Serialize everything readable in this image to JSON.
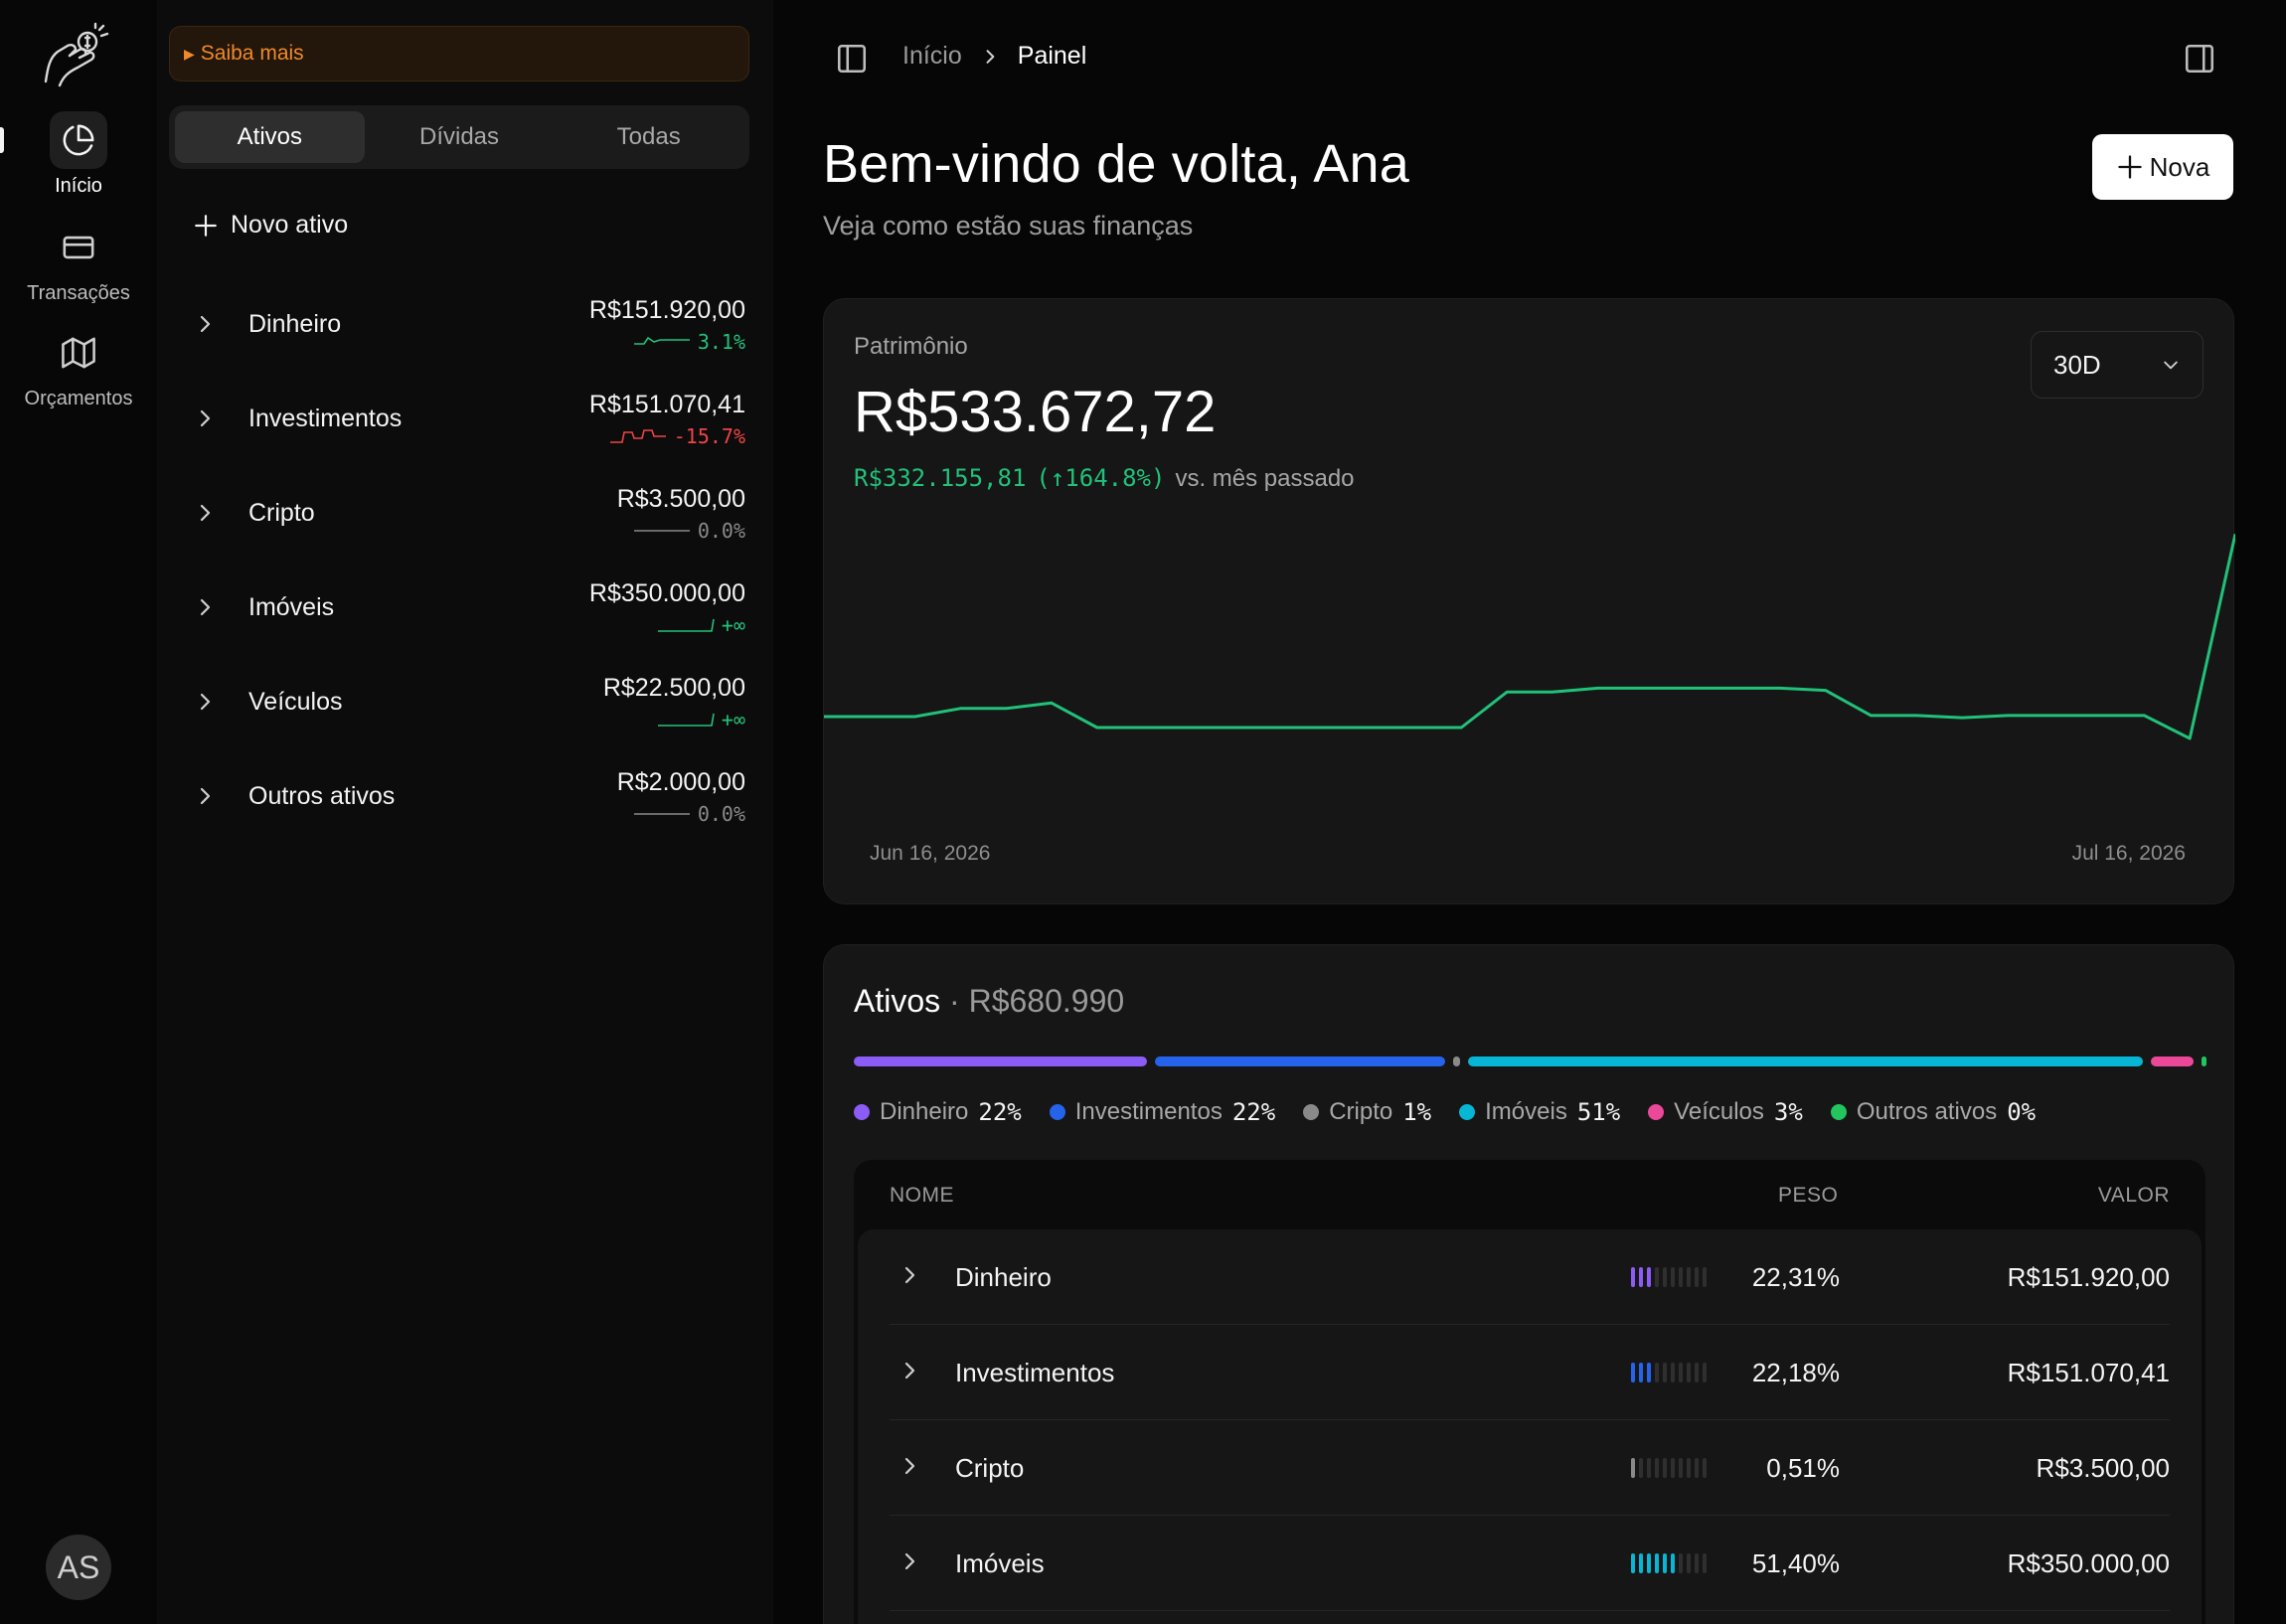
{
  "nav": {
    "items": [
      {
        "label": "Início",
        "icon": "pie-chart-icon",
        "active": true
      },
      {
        "label": "Transações",
        "icon": "credit-card-icon",
        "active": false
      },
      {
        "label": "Orçamentos",
        "icon": "map-icon",
        "active": false
      }
    ],
    "avatar_initials": "AS"
  },
  "panel": {
    "promo": "Saiba mais",
    "tabs": [
      "Ativos",
      "Dívidas",
      "Todas"
    ],
    "active_tab": "Ativos",
    "new_asset": "Novo ativo",
    "accounts": [
      {
        "name": "Dinheiro",
        "amount": "R$151.920,00",
        "trend": "3.1%",
        "dir": "up"
      },
      {
        "name": "Investimentos",
        "amount": "R$151.070,41",
        "trend": "-15.7%",
        "dir": "down"
      },
      {
        "name": "Cripto",
        "amount": "R$3.500,00",
        "trend": "0.0%",
        "dir": "flat"
      },
      {
        "name": "Imóveis",
        "amount": "R$350.000,00",
        "trend": "+∞",
        "dir": "up"
      },
      {
        "name": "Veículos",
        "amount": "R$22.500,00",
        "trend": "+∞",
        "dir": "up"
      },
      {
        "name": "Outros ativos",
        "amount": "R$2.000,00",
        "trend": "0.0%",
        "dir": "flat"
      }
    ]
  },
  "header": {
    "breadcrumb": [
      "Início",
      "Painel"
    ],
    "welcome": "Bem-vindo de volta, Ana",
    "subtitle": "Veja como estão suas finanças",
    "new_button": "Nova"
  },
  "networth": {
    "label": "Patrimônio",
    "value": "R$533.672,72",
    "delta_value": "R$332.155,81",
    "delta_pct": "(↑164.8%)",
    "delta_suffix": "vs. mês passado",
    "range": "30D",
    "colors": {
      "line": "#21c17a"
    }
  },
  "chart_data": {
    "type": "line",
    "x_start": "Jun 16, 2026",
    "x_end": "Jul 16, 2026",
    "xlabel": "",
    "ylabel": "",
    "grid": false,
    "series": [
      {
        "values": [
          200,
          200,
          200,
          215,
          215,
          225,
          180,
          180,
          180,
          180,
          180,
          180,
          180,
          180,
          180,
          245,
          245,
          252,
          252,
          252,
          252,
          252,
          248,
          202,
          202,
          198,
          202,
          202,
          202,
          202,
          160,
          534
        ]
      }
    ],
    "ylim": [
      0,
      600
    ]
  },
  "assets": {
    "title": "Ativos",
    "total": "R$680.990",
    "allocation": [
      {
        "name": "Dinheiro",
        "pct": "22%",
        "share": 22.31,
        "color": "#8b5cf6"
      },
      {
        "name": "Investimentos",
        "pct": "22%",
        "share": 22.18,
        "color": "#2563eb"
      },
      {
        "name": "Cripto",
        "pct": "1%",
        "share": 0.51,
        "color": "#8a8a8a"
      },
      {
        "name": "Imóveis",
        "pct": "51%",
        "share": 51.4,
        "color": "#06b6d4"
      },
      {
        "name": "Veículos",
        "pct": "3%",
        "share": 3.3,
        "color": "#ec4899"
      },
      {
        "name": "Outros ativos",
        "pct": "0%",
        "share": 0.29,
        "color": "#22c55e"
      }
    ],
    "columns": [
      "NOME",
      "PESO",
      "VALOR"
    ],
    "rows": [
      {
        "name": "Dinheiro",
        "weight": "22,31%",
        "value": "R$151.920,00",
        "filled": 3,
        "color": "#8b5cf6"
      },
      {
        "name": "Investimentos",
        "weight": "22,18%",
        "value": "R$151.070,41",
        "filled": 3,
        "color": "#2563eb"
      },
      {
        "name": "Cripto",
        "weight": "0,51%",
        "value": "R$3.500,00",
        "filled": 1,
        "color": "#8a8a8a"
      },
      {
        "name": "Imóveis",
        "weight": "51,40%",
        "value": "R$350.000,00",
        "filled": 6,
        "color": "#06b6d4"
      }
    ]
  }
}
